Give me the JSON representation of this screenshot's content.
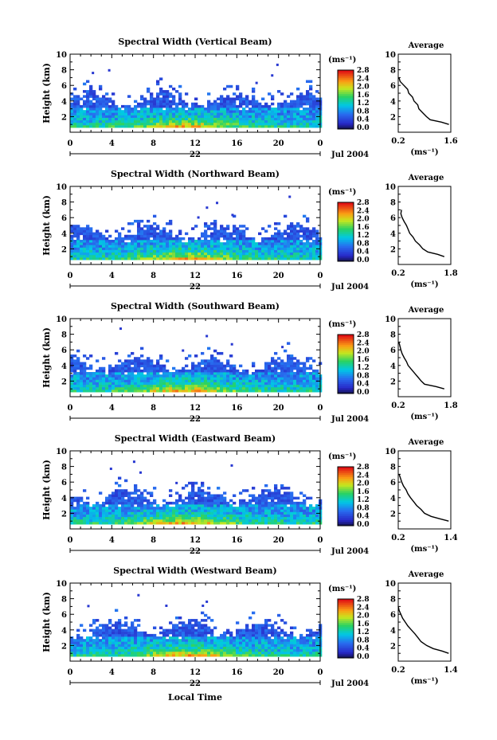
{
  "figure": {
    "xlabel": "Local Time",
    "ylabel": "Height (km)",
    "unit_label": "(ms⁻¹)",
    "date_label": "Jul 2004",
    "day_label": "22",
    "profile_title": "Average",
    "profile_xlabel": "(ms⁻¹)"
  },
  "chart_data": [
    {
      "type": "heatmap",
      "title": "Spectral Width (Vertical Beam)",
      "xlim": [
        0,
        24
      ],
      "ylim": [
        0,
        10
      ],
      "xticks": [
        "0",
        "4",
        "8",
        "12",
        "16",
        "20",
        "0"
      ],
      "yticks": [
        "2",
        "4",
        "6",
        "8",
        "10"
      ],
      "colorbar": {
        "ticks": [
          "0.0",
          "0.4",
          "0.8",
          "1.2",
          "1.6",
          "2.0",
          "2.4",
          "2.8"
        ]
      },
      "profile": {
        "xticks": [
          "0.2",
          "1.6"
        ],
        "xlim": [
          0.2,
          1.6
        ],
        "height_km": [
          1.0,
          1.3,
          1.6,
          2.0,
          2.5,
          3.0,
          3.5,
          4.0,
          4.5,
          5.0,
          5.5,
          6.0,
          6.5,
          7.0
        ],
        "width": [
          1.55,
          1.35,
          1.05,
          0.95,
          0.85,
          0.75,
          0.72,
          0.62,
          0.58,
          0.48,
          0.45,
          0.35,
          0.25,
          0.22
        ]
      }
    },
    {
      "type": "heatmap",
      "title": "Spectral Width (Northward Beam)",
      "xlim": [
        0,
        24
      ],
      "ylim": [
        0,
        10
      ],
      "xticks": [
        "0",
        "4",
        "8",
        "12",
        "16",
        "20",
        "0"
      ],
      "yticks": [
        "2",
        "4",
        "6",
        "8",
        "10"
      ],
      "colorbar": {
        "ticks": [
          "0.0",
          "0.4",
          "0.8",
          "1.2",
          "1.6",
          "2.0",
          "2.4",
          "2.8"
        ]
      },
      "profile": {
        "xticks": [
          "0.2",
          "1.8"
        ],
        "xlim": [
          0.2,
          1.8
        ],
        "height_km": [
          1.0,
          1.3,
          1.6,
          2.0,
          2.5,
          3.0,
          3.5,
          4.0,
          4.5,
          5.0,
          5.5,
          6.0,
          6.5,
          7.0
        ],
        "width": [
          1.6,
          1.4,
          1.1,
          0.95,
          0.85,
          0.72,
          0.65,
          0.55,
          0.5,
          0.45,
          0.38,
          0.32,
          0.28,
          0.3
        ]
      }
    },
    {
      "type": "heatmap",
      "title": "Spectral Width (Southward Beam)",
      "xlim": [
        0,
        24
      ],
      "ylim": [
        0,
        10
      ],
      "xticks": [
        "0",
        "4",
        "8",
        "12",
        "16",
        "20",
        "0"
      ],
      "yticks": [
        "2",
        "4",
        "6",
        "8",
        "10"
      ],
      "colorbar": {
        "ticks": [
          "0.0",
          "0.4",
          "0.8",
          "1.2",
          "1.6",
          "2.0",
          "2.4",
          "2.8"
        ]
      },
      "profile": {
        "xticks": [
          "0.2",
          "1.8"
        ],
        "xlim": [
          0.2,
          1.8
        ],
        "height_km": [
          1.0,
          1.3,
          1.6,
          2.0,
          2.5,
          3.0,
          3.5,
          4.0,
          4.5,
          5.0,
          5.5,
          6.0,
          6.5,
          7.0
        ],
        "width": [
          1.6,
          1.35,
          1.0,
          0.9,
          0.8,
          0.7,
          0.6,
          0.5,
          0.45,
          0.38,
          0.32,
          0.28,
          0.25,
          0.22
        ]
      }
    },
    {
      "type": "heatmap",
      "title": "Spectral Width (Eastward Beam)",
      "xlim": [
        0,
        24
      ],
      "ylim": [
        0,
        10
      ],
      "xticks": [
        "0",
        "4",
        "8",
        "12",
        "16",
        "20",
        "0"
      ],
      "yticks": [
        "2",
        "4",
        "6",
        "8",
        "10"
      ],
      "colorbar": {
        "ticks": [
          "0.0",
          "0.4",
          "0.8",
          "1.2",
          "1.6",
          "2.0",
          "2.4",
          "2.8"
        ]
      },
      "profile": {
        "xticks": [
          "0.2",
          "1.4"
        ],
        "xlim": [
          0.2,
          1.4
        ],
        "height_km": [
          1.0,
          1.3,
          1.6,
          2.0,
          2.5,
          3.0,
          3.5,
          4.0,
          4.5,
          5.0,
          5.5,
          6.0,
          6.5,
          7.0
        ],
        "width": [
          1.35,
          1.15,
          0.95,
          0.8,
          0.72,
          0.62,
          0.55,
          0.48,
          0.42,
          0.38,
          0.32,
          0.28,
          0.25,
          0.22
        ]
      }
    },
    {
      "type": "heatmap",
      "title": "Spectral Width (Westward Beam)",
      "xlim": [
        0,
        24
      ],
      "ylim": [
        0,
        10
      ],
      "xticks": [
        "0",
        "4",
        "8",
        "12",
        "16",
        "20",
        "0"
      ],
      "yticks": [
        "2",
        "4",
        "6",
        "8",
        "10"
      ],
      "colorbar": {
        "ticks": [
          "0.0",
          "0.4",
          "0.8",
          "1.2",
          "1.6",
          "2.0",
          "2.4",
          "2.8"
        ]
      },
      "profile": {
        "xticks": [
          "0.2",
          "1.4"
        ],
        "xlim": [
          0.2,
          1.4
        ],
        "height_km": [
          1.0,
          1.3,
          1.6,
          2.0,
          2.5,
          3.0,
          3.5,
          4.0,
          4.5,
          5.0,
          5.5,
          6.0,
          6.5,
          7.0
        ],
        "width": [
          1.35,
          1.2,
          1.0,
          0.85,
          0.72,
          0.65,
          0.58,
          0.5,
          0.42,
          0.36,
          0.3,
          0.26,
          0.22,
          0.2
        ]
      }
    }
  ]
}
